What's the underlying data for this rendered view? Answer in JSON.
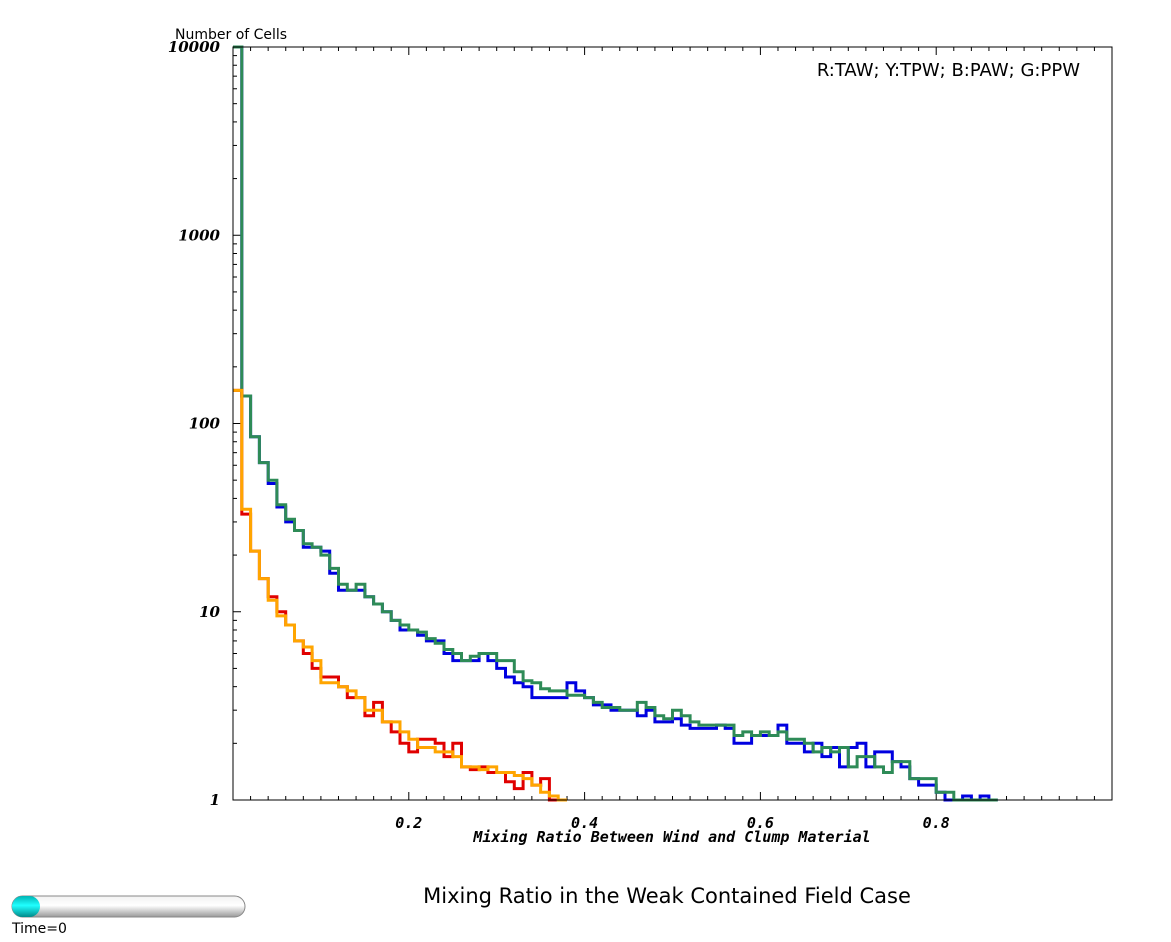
{
  "caption": "Mixing Ratio in the Weak Contained Field Case",
  "time_label": "Time=0",
  "time_slider": {
    "value": 0.12
  },
  "chart_data": {
    "type": "line",
    "step": true,
    "ylabel": "Number of Cells",
    "xlabel": "Mixing Ratio Between Wind and Clump Material",
    "legend_text": "R:TAW; Y:TPW; B:PAW; G:PPW",
    "legend_position": "top-right",
    "yscale": "log",
    "xlim": [
      0,
      1.0
    ],
    "ylim": [
      1,
      10000
    ],
    "x_ticks": [
      "0.2",
      "0.4",
      "0.6",
      "0.8"
    ],
    "y_ticks": [
      "1",
      "10",
      "100",
      "1000",
      "10000"
    ],
    "grid": false,
    "colors": {
      "red": "#e00000",
      "yellow": "#ffa500",
      "blue": "#0000e0",
      "green": "#2e8b57"
    },
    "series": [
      {
        "color": "#0000e0",
        "x": [
          0.0,
          0.01,
          0.02,
          0.03,
          0.04,
          0.05,
          0.06,
          0.07,
          0.08,
          0.09,
          0.1,
          0.11,
          0.12,
          0.13,
          0.14,
          0.15,
          0.16,
          0.17,
          0.18,
          0.19,
          0.2,
          0.21,
          0.22,
          0.23,
          0.24,
          0.25,
          0.26,
          0.27,
          0.28,
          0.29,
          0.3,
          0.31,
          0.32,
          0.33,
          0.34,
          0.35,
          0.36,
          0.37,
          0.38,
          0.39,
          0.4,
          0.41,
          0.42,
          0.43,
          0.44,
          0.45,
          0.46,
          0.47,
          0.48,
          0.49,
          0.5,
          0.51,
          0.52,
          0.53,
          0.54,
          0.55,
          0.56,
          0.57,
          0.58,
          0.59,
          0.6,
          0.61,
          0.62,
          0.63,
          0.64,
          0.65,
          0.66,
          0.67,
          0.68,
          0.69,
          0.7,
          0.71,
          0.72,
          0.73,
          0.74,
          0.75,
          0.76,
          0.77,
          0.78,
          0.79,
          0.8,
          0.81,
          0.82,
          0.83,
          0.84,
          0.85,
          0.86
        ],
        "y": [
          10000,
          140,
          85,
          62,
          48,
          36,
          30,
          27,
          22,
          22,
          21,
          16,
          13,
          13,
          13,
          12,
          11,
          10,
          9,
          8,
          8,
          7.5,
          7,
          7,
          6,
          5.5,
          5.5,
          5.5,
          6,
          5.5,
          5,
          4.5,
          4.2,
          4,
          3.5,
          3.5,
          3.5,
          3.5,
          4.2,
          3.8,
          3.5,
          3.2,
          3.2,
          3.0,
          3.0,
          3.0,
          2.8,
          3.0,
          2.6,
          2.6,
          2.7,
          2.5,
          2.4,
          2.4,
          2.4,
          2.5,
          2.4,
          2.0,
          2.0,
          2.2,
          2.2,
          2.2,
          2.5,
          2.0,
          2.0,
          1.8,
          2.0,
          1.7,
          1.9,
          1.5,
          1.9,
          2.0,
          1.5,
          1.8,
          1.8,
          1.6,
          1.5,
          1.3,
          1.2,
          1.2,
          1.1,
          1.0,
          1.0,
          1.05,
          1.0,
          1.05,
          1.0
        ]
      },
      {
        "color": "#2e8b57",
        "x": [
          0.0,
          0.01,
          0.02,
          0.03,
          0.04,
          0.05,
          0.06,
          0.07,
          0.08,
          0.09,
          0.1,
          0.11,
          0.12,
          0.13,
          0.14,
          0.15,
          0.16,
          0.17,
          0.18,
          0.19,
          0.2,
          0.21,
          0.22,
          0.23,
          0.24,
          0.25,
          0.26,
          0.27,
          0.28,
          0.29,
          0.3,
          0.31,
          0.32,
          0.33,
          0.34,
          0.35,
          0.36,
          0.37,
          0.38,
          0.39,
          0.4,
          0.41,
          0.42,
          0.43,
          0.44,
          0.45,
          0.46,
          0.47,
          0.48,
          0.49,
          0.5,
          0.51,
          0.52,
          0.53,
          0.54,
          0.55,
          0.56,
          0.57,
          0.58,
          0.59,
          0.6,
          0.61,
          0.62,
          0.63,
          0.64,
          0.65,
          0.66,
          0.67,
          0.68,
          0.69,
          0.7,
          0.71,
          0.72,
          0.73,
          0.74,
          0.75,
          0.76,
          0.77,
          0.78,
          0.79,
          0.8,
          0.81,
          0.82,
          0.83,
          0.84,
          0.85,
          0.86
        ],
        "y": [
          10000,
          140,
          85,
          62,
          50,
          37,
          31,
          27,
          23,
          22,
          20,
          17,
          14,
          13,
          14,
          12,
          11,
          10,
          9,
          8.5,
          8,
          7.8,
          7.2,
          6.8,
          6.3,
          6,
          5.5,
          5.8,
          6,
          6,
          5.5,
          5.5,
          4.8,
          4.3,
          4.2,
          3.9,
          3.8,
          3.8,
          3.6,
          3.6,
          3.5,
          3.3,
          3.1,
          3.1,
          3.0,
          3.0,
          3.3,
          3.1,
          2.8,
          2.7,
          3.0,
          2.8,
          2.6,
          2.5,
          2.5,
          2.5,
          2.5,
          2.2,
          2.3,
          2.2,
          2.3,
          2.2,
          2.3,
          2.1,
          2.1,
          2.0,
          1.8,
          1.9,
          1.8,
          1.9,
          1.5,
          1.7,
          1.7,
          1.5,
          1.4,
          1.6,
          1.6,
          1.3,
          1.3,
          1.3,
          1.1,
          1.1,
          1.0,
          1.0,
          1.0,
          1.0,
          1.0
        ]
      },
      {
        "color": "#e00000",
        "x": [
          0.0,
          0.01,
          0.02,
          0.03,
          0.04,
          0.05,
          0.06,
          0.07,
          0.08,
          0.09,
          0.1,
          0.11,
          0.12,
          0.13,
          0.14,
          0.15,
          0.16,
          0.17,
          0.18,
          0.19,
          0.2,
          0.21,
          0.22,
          0.23,
          0.24,
          0.25,
          0.26,
          0.27,
          0.28,
          0.29,
          0.3,
          0.31,
          0.32,
          0.33,
          0.34,
          0.35,
          0.36,
          0.37
        ],
        "y": [
          150,
          33,
          21,
          15,
          12,
          10,
          8.5,
          7,
          6,
          5,
          4.5,
          4.5,
          4,
          3.5,
          3.5,
          2.8,
          3.3,
          2.6,
          2.3,
          2.0,
          1.8,
          2.1,
          2.1,
          2.0,
          1.7,
          2.0,
          1.5,
          1.45,
          1.5,
          1.4,
          1.4,
          1.25,
          1.15,
          1.4,
          1.2,
          1.3,
          1.0,
          1.0
        ]
      },
      {
        "color": "#ffa500",
        "x": [
          0.0,
          0.01,
          0.02,
          0.03,
          0.04,
          0.05,
          0.06,
          0.07,
          0.08,
          0.09,
          0.1,
          0.11,
          0.12,
          0.13,
          0.14,
          0.15,
          0.16,
          0.17,
          0.18,
          0.19,
          0.2,
          0.21,
          0.22,
          0.23,
          0.24,
          0.25,
          0.26,
          0.27,
          0.28,
          0.29,
          0.3,
          0.31,
          0.32,
          0.33,
          0.34,
          0.35,
          0.36,
          0.37
        ],
        "y": [
          150,
          35,
          21,
          15,
          11.5,
          9.5,
          8.5,
          7,
          6.5,
          5.5,
          4.2,
          4.2,
          4.0,
          3.8,
          3.5,
          3.0,
          3.0,
          2.6,
          2.6,
          2.3,
          2.1,
          1.9,
          1.9,
          1.8,
          1.8,
          1.7,
          1.5,
          1.5,
          1.45,
          1.5,
          1.4,
          1.4,
          1.35,
          1.3,
          1.2,
          1.1,
          1.05,
          1.0
        ]
      }
    ]
  }
}
